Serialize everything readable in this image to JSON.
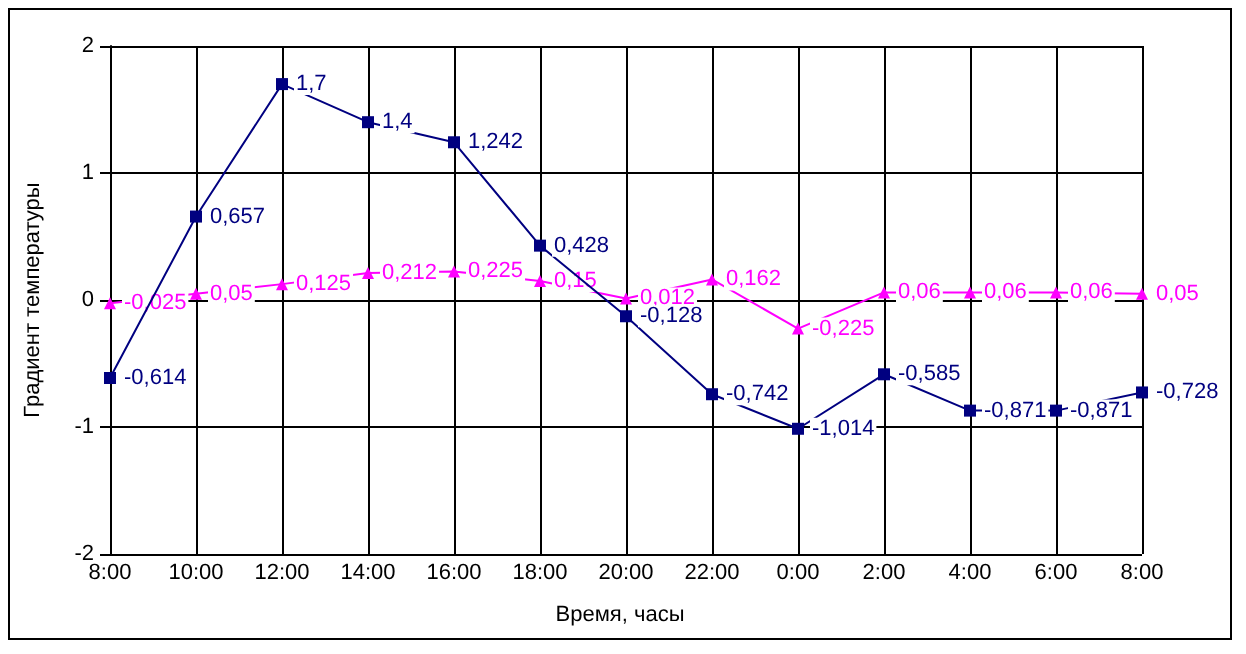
{
  "chart_data": {
    "type": "line",
    "xlabel": "Время, часы",
    "ylabel": "Градиент температуры",
    "categories": [
      "8:00",
      "10:00",
      "12:00",
      "14:00",
      "16:00",
      "18:00",
      "20:00",
      "22:00",
      "0:00",
      "2:00",
      "4:00",
      "6:00",
      "8:00"
    ],
    "series": [
      {
        "color": "#000080",
        "marker": "square",
        "values": [
          -0.614,
          0.657,
          1.7,
          1.4,
          1.242,
          0.428,
          -0.128,
          -0.742,
          -1.014,
          -0.585,
          -0.871,
          -0.871,
          -0.728
        ],
        "value_labels": [
          "-0,614",
          "0,657",
          "1,7",
          "1,4",
          "1,242",
          "0,428",
          "-0,128",
          "-0,742",
          "-1,014",
          "-0,585",
          "-0,871",
          "-0,871",
          "-0,728"
        ]
      },
      {
        "color": "#ff00ff",
        "marker": "triangle",
        "values": [
          -0.025,
          0.05,
          0.125,
          0.212,
          0.225,
          0.15,
          0.012,
          0.162,
          -0.225,
          0.06,
          0.06,
          0.06,
          0.05
        ],
        "value_labels": [
          "-0,025",
          "0,05",
          "0,125",
          "0,212",
          "0,225",
          "0,15",
          "0,012",
          "0,162",
          "-0,225",
          "0,06",
          "0,06",
          "0,06",
          "0,05"
        ]
      }
    ],
    "ylim": [
      -2,
      2
    ],
    "yticks": [
      -2,
      -1,
      0,
      1,
      2
    ],
    "grid": true
  }
}
